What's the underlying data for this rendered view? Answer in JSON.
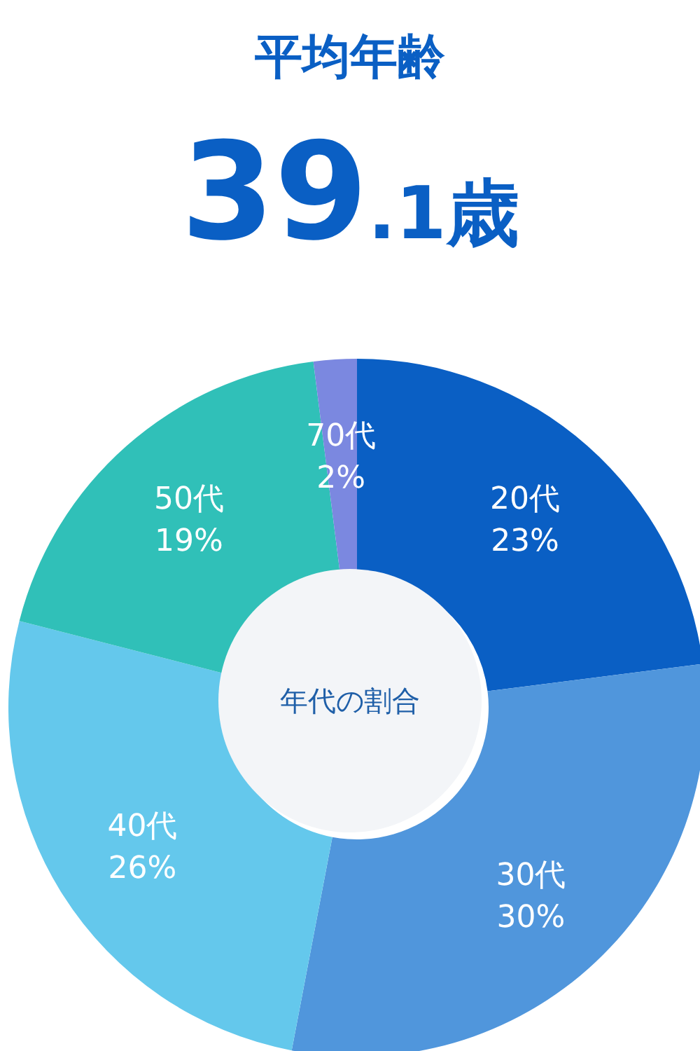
{
  "chart_data": {
    "type": "donut",
    "title": "平均年齢",
    "subtitle": "39.1歳",
    "annotations": [
      "年代の割合"
    ],
    "categories": [
      "20代",
      "30代",
      "40代",
      "50代",
      "70代"
    ],
    "values": [
      23,
      30,
      26,
      19,
      2
    ],
    "colors": [
      "#0a5fc4",
      "#5096dc",
      "#64c8ec",
      "#30c0b8",
      "#7b88e0"
    ],
    "value_labels": [
      "23%",
      "30%",
      "26%",
      "19%",
      "2%"
    ],
    "legend": false
  }
}
